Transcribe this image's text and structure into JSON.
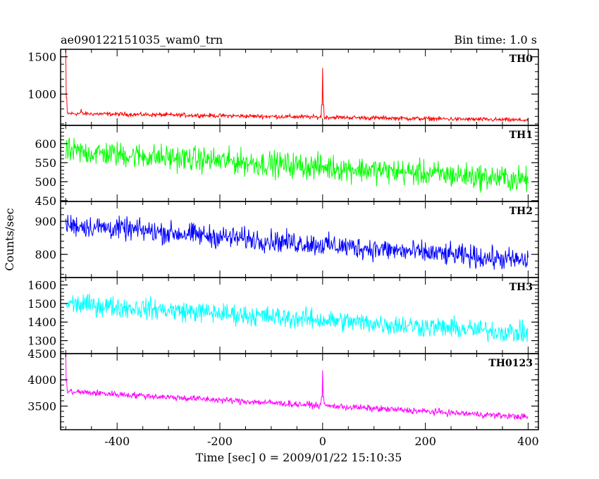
{
  "chart_data": {
    "type": "line",
    "title": "ae090122151035_wam0_trn",
    "subtitle": "Bin time: 1.0 s",
    "xlabel": "Time [sec] 0 = 2009/01/22 15:10:35",
    "ylabel": "Counts/sec",
    "xlim": [
      -510,
      420
    ],
    "xticks": [
      -400,
      -200,
      0,
      200,
      400
    ],
    "grid": false,
    "panels": [
      {
        "name": "TH0",
        "color": "#ff0000",
        "ylim": [
          580,
          1600
        ],
        "yticks": [
          1000,
          1500
        ],
        "x_start": -500,
        "x_end": 400,
        "baseline_start": 740,
        "baseline_end": 650,
        "noise": 25,
        "peaks": [
          {
            "x": -500,
            "y": 1600
          },
          {
            "x": -470,
            "y": 800
          },
          {
            "x": 0,
            "y": 1350
          }
        ]
      },
      {
        "name": "TH1",
        "color": "#00ff00",
        "ylim": [
          448,
          648
        ],
        "yticks": [
          450,
          500,
          550,
          600
        ],
        "x_start": -500,
        "x_end": 400,
        "baseline_start": 580,
        "baseline_end": 505,
        "noise": 30,
        "peaks": []
      },
      {
        "name": "TH2",
        "color": "#0000ff",
        "ylim": [
          730,
          960
        ],
        "yticks": [
          800,
          900
        ],
        "x_start": -500,
        "x_end": 400,
        "baseline_start": 890,
        "baseline_end": 780,
        "noise": 30,
        "peaks": []
      },
      {
        "name": "TH3",
        "color": "#00ffff",
        "ylim": [
          1230,
          1640
        ],
        "yticks": [
          1300,
          1400,
          1500,
          1600
        ],
        "x_start": -500,
        "x_end": 400,
        "baseline_start": 1500,
        "baseline_end": 1340,
        "noise": 50,
        "peaks": []
      },
      {
        "name": "TH0123",
        "color": "#ff00ff",
        "ylim": [
          3050,
          4500
        ],
        "yticks": [
          3500,
          4000,
          4500
        ],
        "x_start": -500,
        "x_end": 400,
        "baseline_start": 3780,
        "baseline_end": 3290,
        "noise": 55,
        "peaks": [
          {
            "x": -500,
            "y": 4500
          },
          {
            "x": 0,
            "y": 4180
          }
        ]
      }
    ]
  }
}
